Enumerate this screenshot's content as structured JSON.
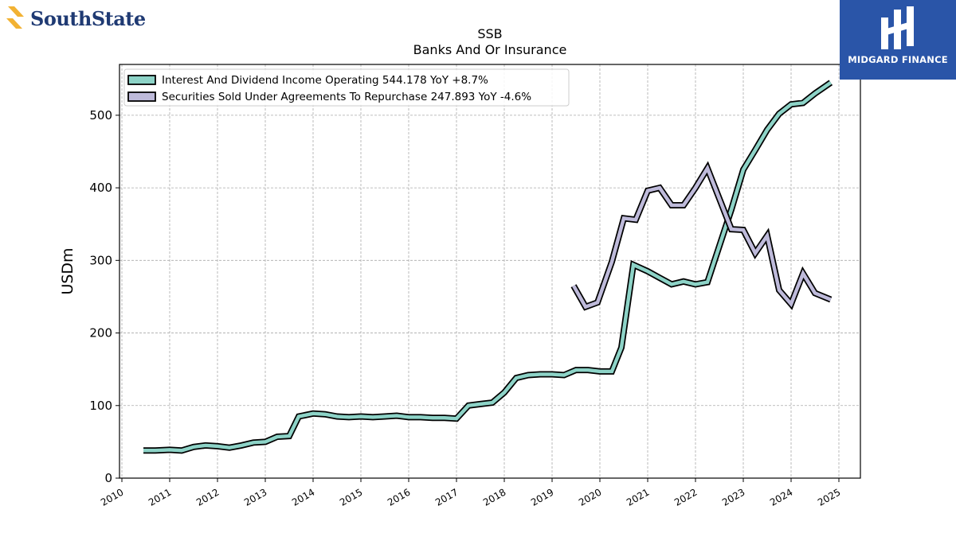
{
  "logos": {
    "left_name": "SouthState",
    "right_name": "MIDGARD FINANCE",
    "left_color": "#f2b233",
    "right_bg": "#2a55a8"
  },
  "chart_data": {
    "type": "line",
    "title": "SSB",
    "subtitle": "Banks And Or Insurance",
    "ylabel": "USDm",
    "xlabel": "",
    "xlim": [
      2009.95,
      2025.45
    ],
    "ylim": [
      0,
      570
    ],
    "yticks": [
      0,
      100,
      200,
      300,
      400,
      500
    ],
    "xticks": [
      "2010",
      "2011",
      "2012",
      "2013",
      "2014",
      "2015",
      "2016",
      "2017",
      "2018",
      "2019",
      "2020",
      "2021",
      "2022",
      "2023",
      "2024",
      "2025"
    ],
    "grid": true,
    "legend_position": "top-left",
    "series": [
      {
        "name": "Interest And Dividend Income Operating",
        "legend_label": "Interest And Dividend Income Operating  544.178 YoY +8.7%",
        "color": "#8dd3c7",
        "x": [
          2010.45,
          2010.7,
          2011.0,
          2011.25,
          2011.5,
          2011.75,
          2012.0,
          2012.25,
          2012.5,
          2012.75,
          2013.0,
          2013.25,
          2013.5,
          2013.7,
          2014.0,
          2014.25,
          2014.5,
          2014.75,
          2015.0,
          2015.25,
          2015.5,
          2015.75,
          2016.0,
          2016.25,
          2016.5,
          2016.75,
          2017.0,
          2017.25,
          2017.5,
          2017.75,
          2018.0,
          2018.25,
          2018.5,
          2018.75,
          2019.0,
          2019.25,
          2019.5,
          2019.75,
          2020.0,
          2020.25,
          2020.45,
          2020.7,
          2021.0,
          2021.25,
          2021.5,
          2021.75,
          2022.0,
          2022.25,
          2022.5,
          2022.75,
          2023.0,
          2023.25,
          2023.5,
          2023.75,
          2024.0,
          2024.25,
          2024.5,
          2024.83
        ],
        "y": [
          38,
          38,
          39,
          38,
          43,
          45,
          44,
          42,
          45,
          49,
          50,
          57,
          58,
          85,
          89,
          88,
          85,
          84,
          85,
          84,
          85,
          86,
          84,
          84,
          83,
          83,
          82,
          100,
          102,
          104,
          118,
          138,
          142,
          143,
          143,
          142,
          149,
          149,
          147,
          147,
          180,
          294,
          285,
          276,
          267,
          271,
          267,
          270,
          320,
          370,
          425,
          452,
          480,
          502,
          515,
          517,
          530,
          545
        ]
      },
      {
        "name": "Securities Sold Under Agreements To Repurchase",
        "legend_label": "Securities Sold Under Agreements To Repurchase  247.893 YoY -4.6%",
        "color": "#bebada",
        "x": [
          2019.45,
          2019.7,
          2019.95,
          2020.25,
          2020.5,
          2020.75,
          2021.0,
          2021.25,
          2021.5,
          2021.75,
          2022.0,
          2022.25,
          2022.5,
          2022.75,
          2023.0,
          2023.25,
          2023.5,
          2023.75,
          2024.0,
          2024.25,
          2024.5,
          2024.83
        ],
        "y": [
          265,
          236,
          242,
          298,
          358,
          356,
          396,
          400,
          376,
          376,
          400,
          427,
          385,
          343,
          342,
          310,
          334,
          259,
          240,
          282,
          255,
          246
        ]
      }
    ]
  }
}
